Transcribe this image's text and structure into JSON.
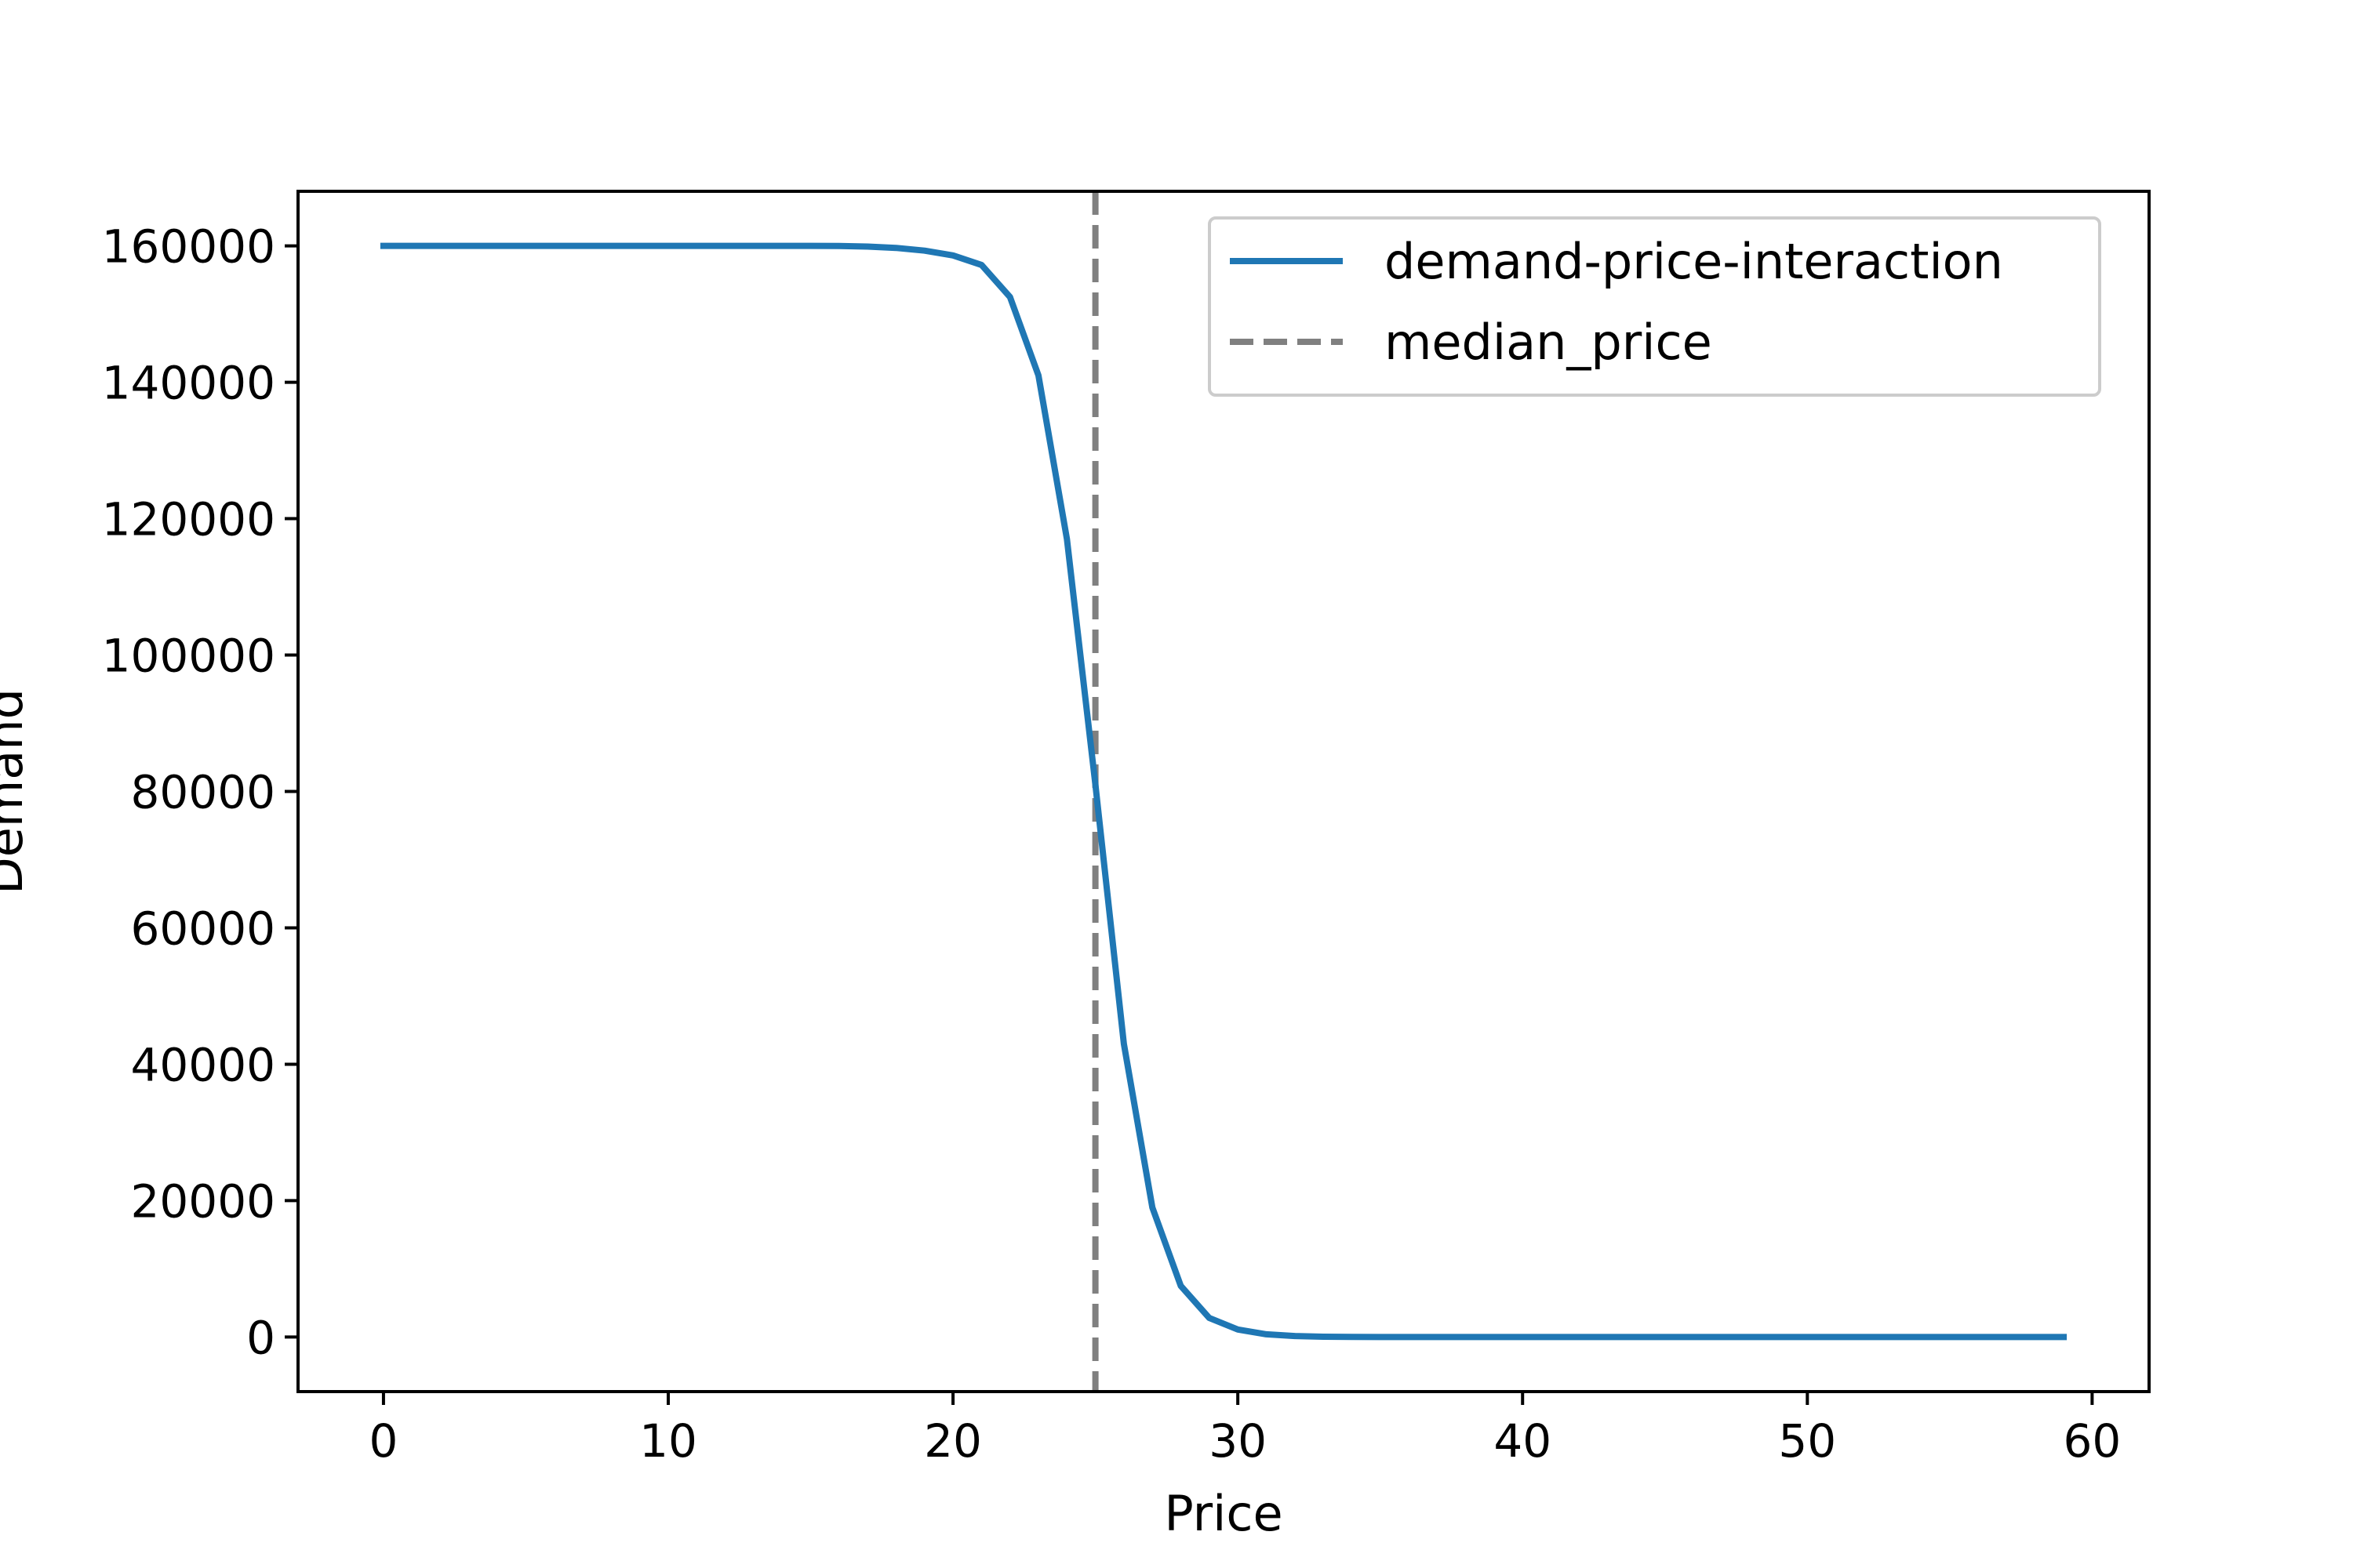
{
  "chart_data": {
    "type": "line",
    "title": "",
    "xlabel": "Price",
    "ylabel": "Demand",
    "xlim": [
      -3,
      62
    ],
    "ylim": [
      -8000,
      168000
    ],
    "xticks": [
      0,
      10,
      20,
      30,
      40,
      50,
      60
    ],
    "yticks": [
      0,
      20000,
      40000,
      60000,
      80000,
      100000,
      120000,
      140000,
      160000
    ],
    "xtick_labels": [
      "0",
      "10",
      "20",
      "30",
      "40",
      "50",
      "60"
    ],
    "ytick_labels": [
      "0",
      "20000",
      "40000",
      "60000",
      "80000",
      "100000",
      "120000",
      "140000",
      "160000"
    ],
    "grid": false,
    "legend_position": "top-right",
    "series": [
      {
        "name": "demand-price-interaction",
        "color": "#1f77b4",
        "style": "solid",
        "x": [
          0,
          1,
          2,
          3,
          4,
          5,
          6,
          7,
          8,
          9,
          10,
          11,
          12,
          13,
          14,
          15,
          16,
          17,
          18,
          19,
          20,
          21,
          22,
          23,
          24,
          25,
          26,
          27,
          28,
          29,
          30,
          31,
          32,
          33,
          34,
          35,
          36,
          37,
          38,
          39,
          40,
          41,
          42,
          43,
          44,
          45,
          46,
          47,
          48,
          49,
          50,
          51,
          52,
          53,
          54,
          55,
          56,
          57,
          58,
          59
        ],
        "y": [
          160000,
          160000,
          160000,
          160000,
          160000,
          160000,
          160000,
          160000,
          160000,
          160000,
          160000,
          160000,
          160000,
          160000,
          160000,
          160000,
          159990,
          159900,
          159700,
          159300,
          158600,
          157200,
          152500,
          141000,
          117000,
          81000,
          43000,
          19000,
          7500,
          2800,
          1100,
          400,
          150,
          50,
          20,
          5,
          0,
          0,
          0,
          0,
          0,
          0,
          0,
          0,
          0,
          0,
          0,
          0,
          0,
          0,
          0,
          0,
          0,
          0,
          0,
          0,
          0,
          0,
          0,
          0
        ]
      },
      {
        "name": "median_price",
        "color": "#808080",
        "style": "dashed",
        "vline_x": 25
      }
    ]
  }
}
